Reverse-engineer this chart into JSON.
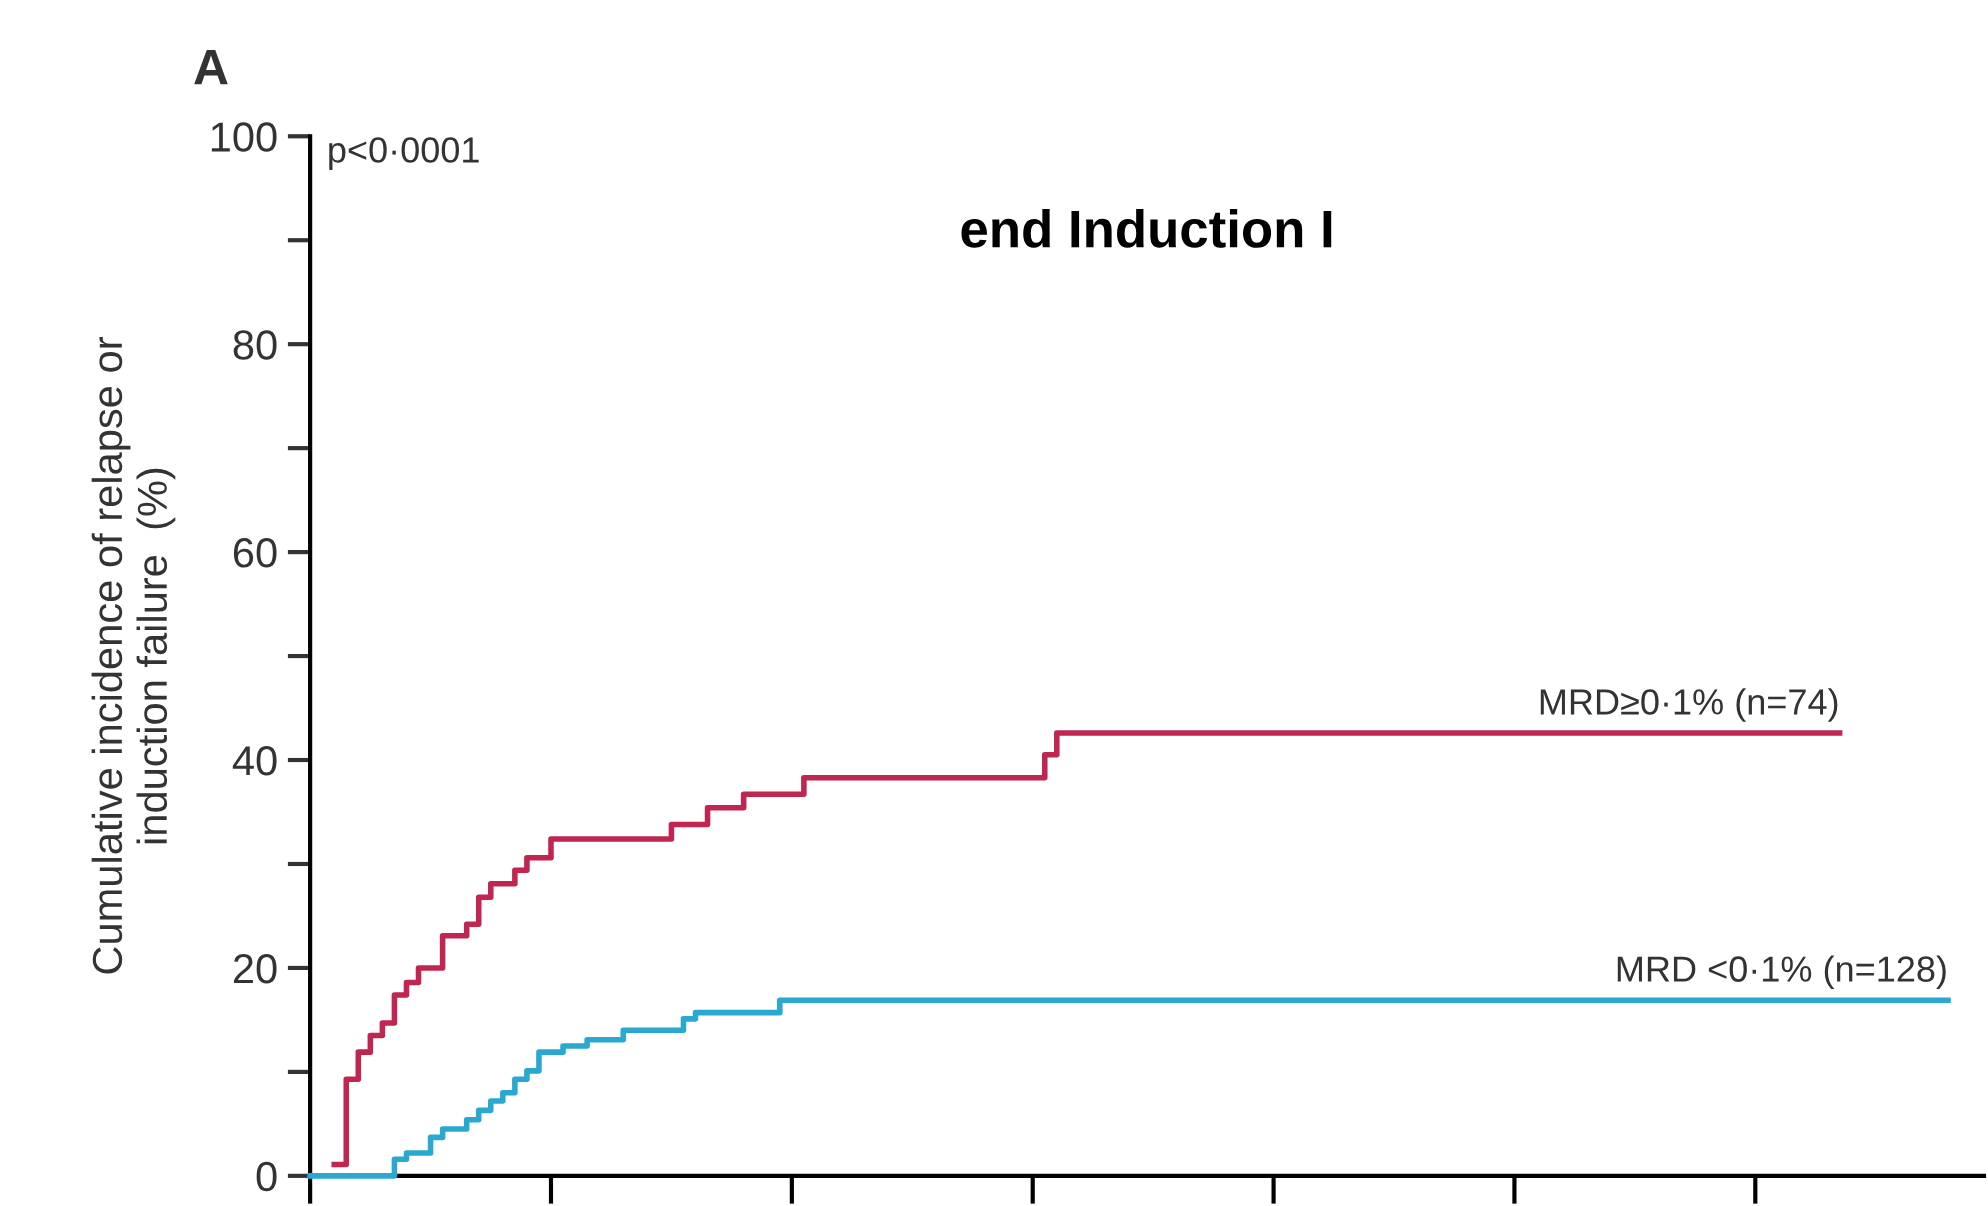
{
  "chart_data": {
    "type": "step",
    "title": "end Induction I",
    "ylabel": "Cumulative incidence of relapse or\ninduction failure  (%)",
    "annotations": [
      "A",
      "p<0·0001"
    ],
    "categories": [
      null,
      null,
      null,
      null,
      null,
      null,
      null,
      null,
      null,
      null,
      null,
      null,
      null,
      null,
      null,
      null,
      null,
      null,
      null,
      null,
      null,
      null,
      null,
      null,
      null,
      null,
      null,
      null,
      null,
      null,
      null,
      null,
      null,
      null,
      null,
      null,
      null,
      null,
      null,
      null,
      null,
      null,
      null,
      null,
      null,
      null,
      null,
      null,
      null,
      null,
      null,
      null,
      null,
      null,
      null,
      null,
      null,
      null,
      null,
      null,
      null,
      null,
      null,
      null,
      null,
      null,
      null,
      null,
      null,
      null,
      null,
      null,
      null,
      null,
      null,
      null,
      null,
      null,
      null,
      null,
      null,
      null,
      null,
      null,
      null,
      null,
      null,
      null,
      null,
      null,
      null,
      null,
      null,
      null,
      null,
      null,
      null,
      null,
      null,
      null,
      null,
      null,
      null,
      null,
      null,
      null,
      null,
      null,
      null,
      null,
      null,
      null,
      null,
      null,
      null,
      null,
      null,
      null,
      null,
      null,
      null,
      null,
      null,
      null,
      null,
      null,
      null,
      null,
      null,
      null,
      null,
      null,
      null,
      null,
      null,
      null,
      null
    ],
    "series": [
      {
        "name": "MRD≥0·1% (n=74)",
        "color": "#c0264f",
        "values": [
          null,
          null,
          1.1,
          9.3,
          11.9,
          13.5,
          14.7,
          17.4,
          18.6,
          20,
          20,
          23.1,
          23.1,
          24.2,
          26.8,
          28.1,
          28.1,
          29.4,
          30.6,
          30.6,
          32.4,
          32.4,
          32.4,
          32.4,
          32.4,
          32.4,
          32.4,
          32.4,
          32.4,
          32.4,
          33.8,
          33.8,
          33.8,
          35.4,
          35.4,
          35.4,
          36.7,
          36.7,
          36.7,
          36.7,
          36.7,
          38.3,
          38.3,
          38.3,
          38.3,
          38.3,
          38.3,
          38.3,
          38.3,
          38.3,
          38.3,
          38.3,
          38.3,
          38.3,
          38.3,
          38.3,
          38.3,
          38.3,
          38.3,
          38.3,
          38.3,
          40.5,
          42.6,
          42.6,
          42.6,
          42.6,
          42.6,
          42.6,
          42.6,
          42.6,
          42.6,
          42.6,
          42.6,
          42.6,
          42.6,
          42.6,
          42.6,
          42.6,
          42.6,
          42.6,
          42.6,
          42.6,
          42.6,
          42.6,
          42.6,
          42.6,
          42.6,
          42.6,
          42.6,
          42.6,
          42.6,
          42.6,
          42.6,
          42.6,
          42.6,
          42.6,
          42.6,
          42.6,
          42.6,
          42.6,
          42.6,
          42.6,
          42.6,
          42.6,
          42.6,
          42.6,
          42.6,
          42.6,
          42.6,
          42.6,
          42.6,
          42.6,
          42.6,
          42.6,
          42.6,
          42.6,
          42.6,
          42.6,
          42.6,
          42.6,
          42.6,
          42.6,
          42.6,
          42.6,
          42.6,
          42.6,
          42.6,
          42.6,
          null,
          null,
          null,
          null,
          null,
          null,
          null,
          null,
          null
        ]
      },
      {
        "name": "MRD <0·1% (n=128)",
        "color": "#29a8d0",
        "values": [
          0,
          0,
          0,
          0,
          0,
          0,
          0,
          1.6,
          2.2,
          2.2,
          3.7,
          4.5,
          4.5,
          5.4,
          6.3,
          7.2,
          8.0,
          9.3,
          10.1,
          11.9,
          11.9,
          12.5,
          12.5,
          13.1,
          13.1,
          13.1,
          14.0,
          14.0,
          14.0,
          14.0,
          14.0,
          15.1,
          15.7,
          15.7,
          15.7,
          15.7,
          15.7,
          15.7,
          15.7,
          16.9,
          16.9,
          16.9,
          16.9,
          16.9,
          16.9,
          16.9,
          16.9,
          16.9,
          16.9,
          16.9,
          16.9,
          16.9,
          16.9,
          16.9,
          16.9,
          16.9,
          16.9,
          16.9,
          16.9,
          16.9,
          16.9,
          16.9,
          16.9,
          16.9,
          16.9,
          16.9,
          16.9,
          16.9,
          16.9,
          16.9,
          16.9,
          16.9,
          16.9,
          16.9,
          16.9,
          16.9,
          16.9,
          16.9,
          16.9,
          16.9,
          16.9,
          16.9,
          16.9,
          16.9,
          16.9,
          16.9,
          16.9,
          16.9,
          16.9,
          16.9,
          16.9,
          16.9,
          16.9,
          16.9,
          16.9,
          16.9,
          16.9,
          16.9,
          16.9,
          16.9,
          16.9,
          16.9,
          16.9,
          16.9,
          16.9,
          16.9,
          16.9,
          16.9,
          16.9,
          16.9,
          16.9,
          16.9,
          16.9,
          16.9,
          16.9,
          16.9,
          16.9,
          16.9,
          16.9,
          16.9,
          16.9,
          16.9,
          16.9,
          16.9,
          16.9,
          16.9,
          16.9,
          16.9,
          16.9,
          16.9,
          16.9,
          16.9,
          16.9,
          16.9,
          16.9,
          16.9,
          16.9
        ]
      }
    ],
    "ylim": [
      0,
      100
    ],
    "yticks": [
      0,
      20,
      40,
      60,
      80,
      100
    ],
    "tick_labels": "y",
    "grid": false,
    "legend": false,
    "line_style": "solid",
    "marker": "none"
  }
}
